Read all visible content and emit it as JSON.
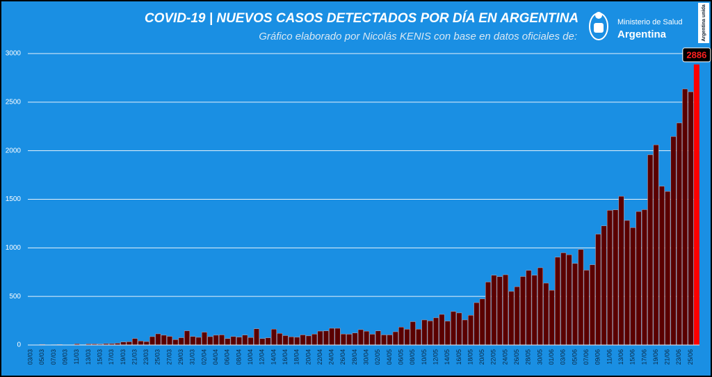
{
  "chart_data": {
    "type": "bar",
    "title": "COVID-19  |  NUEVOS CASOS DETECTADOS POR DÍA EN ARGENTINA",
    "subtitle": "Gráfico elaborado por Nicolás KENIS con base en datos oficiales de:",
    "categories": [
      "03/03",
      null,
      "05/03",
      null,
      "07/03",
      null,
      "09/03",
      null,
      "11/03",
      null,
      "13/03",
      null,
      "15/03",
      null,
      "17/03",
      null,
      "19/03",
      null,
      "21/03",
      null,
      "23/03",
      null,
      "25/03",
      null,
      "27/03",
      null,
      "29/03",
      null,
      "31/03",
      null,
      "02/04",
      null,
      "04/04",
      null,
      "06/04",
      null,
      "08/04",
      null,
      "10/04",
      null,
      "12/04",
      null,
      "14/04",
      null,
      "16/04",
      null,
      "18/04",
      null,
      "20/04",
      null,
      "22/04",
      null,
      "24/04",
      null,
      "26/04",
      null,
      "28/04",
      null,
      "30/04",
      null,
      "02/05",
      null,
      "04/05",
      null,
      "06/05",
      null,
      "08/05",
      null,
      "10/05",
      null,
      "12/05",
      null,
      "14/05",
      null,
      "16/05",
      null,
      "18/05",
      null,
      "20/05",
      null,
      "22/05",
      null,
      "24/05",
      null,
      "26/05",
      null,
      "28/05",
      null,
      "30/05",
      null,
      "01/06",
      null,
      "03/06",
      null,
      "05/06",
      null,
      "07/06",
      null,
      "09/06",
      null,
      "11/06",
      null,
      "13/06",
      null,
      "15/06",
      null,
      "17/06",
      null,
      "19/06",
      null,
      "21/06",
      null,
      "23/06",
      null,
      "25/06",
      null
    ],
    "values": [
      0,
      1,
      6,
      1,
      3,
      5,
      2,
      2,
      12,
      3,
      11,
      11,
      9,
      14,
      14,
      18,
      31,
      33,
      67,
      41,
      35,
      86,
      115,
      101,
      89,
      55,
      75,
      146,
      88,
      79,
      132,
      86,
      101,
      104,
      66,
      87,
      81,
      102,
      77,
      167,
      66,
      74,
      163,
      120,
      97,
      84,
      80,
      104,
      94,
      112,
      143,
      145,
      172,
      172,
      113,
      111,
      124,
      158,
      142,
      111,
      145,
      104,
      104,
      136,
      184,
      162,
      240,
      163,
      258,
      248,
      280,
      315,
      246,
      345,
      330,
      258,
      306,
      436,
      474,
      648,
      718,
      704,
      723,
      552,
      600,
      705,
      768,
      718,
      795,
      637,
      564,
      904,
      949,
      929,
      840,
      983,
      770,
      826,
      1141,
      1226,
      1386,
      1391,
      1531,
      1282,
      1208,
      1374,
      1393,
      1958,
      2060,
      1634,
      1581,
      2146,
      2285,
      2635,
      2606,
      2886
    ],
    "color": "#5a0000",
    "highlight_color": "#ff0000",
    "ylim": [
      0,
      3000
    ],
    "yticks": [
      0,
      500,
      1000,
      1500,
      2000,
      2500,
      3000
    ],
    "grid": true
  },
  "logo": {
    "ministry": "Ministerio de Salud",
    "country": "Argentina",
    "badge": "Argentina unida"
  }
}
